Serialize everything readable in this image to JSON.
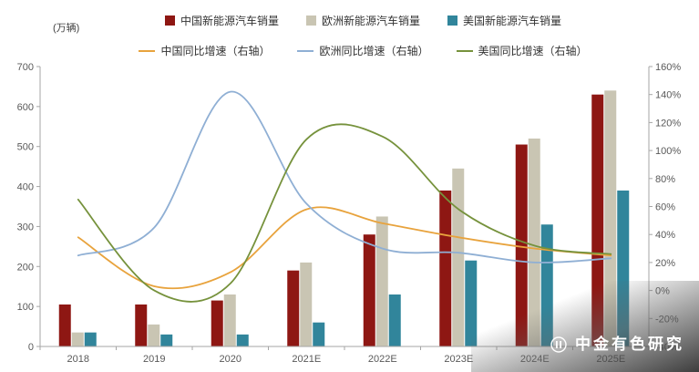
{
  "unit_label": "(万辆)",
  "watermark": {
    "text": "中金有色研究"
  },
  "legend": {
    "bars": [
      {
        "label": "中国新能源汽车销量",
        "color": "#8E1713"
      },
      {
        "label": "欧洲新能源汽车销量",
        "color": "#C9C5B3"
      },
      {
        "label": "美国新能源汽车销量",
        "color": "#31859B"
      }
    ],
    "lines": [
      {
        "label": "中国同比增速（右轴）",
        "color": "#E8A33D"
      },
      {
        "label": "欧洲同比增速（右轴）",
        "color": "#8FAFD4"
      },
      {
        "label": "美国同比增速（右轴）",
        "color": "#76923C"
      }
    ]
  },
  "chart_data": {
    "type": "bar+line combo",
    "title": "",
    "categories": [
      "2018",
      "2019",
      "2020",
      "2021E",
      "2022E",
      "2023E",
      "2024E",
      "2025E"
    ],
    "bar_series": [
      {
        "name": "中国新能源汽车销量",
        "color": "#8E1713",
        "values": [
          105,
          105,
          115,
          190,
          280,
          390,
          505,
          630
        ]
      },
      {
        "name": "欧洲新能源汽车销量",
        "color": "#C9C5B3",
        "values": [
          35,
          55,
          130,
          210,
          325,
          445,
          520,
          640
        ]
      },
      {
        "name": "美国新能源汽车销量",
        "color": "#31859B",
        "values": [
          35,
          30,
          30,
          60,
          130,
          215,
          305,
          390
        ]
      }
    ],
    "line_series": [
      {
        "name": "中国同比增速（右轴）",
        "color": "#E8A33D",
        "values": [
          38,
          3,
          13,
          58,
          48,
          38,
          30,
          25
        ]
      },
      {
        "name": "欧洲同比增速（右轴）",
        "color": "#8FAFD4",
        "values": [
          25,
          45,
          142,
          62,
          30,
          27,
          20,
          23
        ]
      },
      {
        "name": "美国同比增速（右轴）",
        "color": "#76923C",
        "values": [
          65,
          0,
          5,
          108,
          110,
          58,
          32,
          26
        ]
      }
    ],
    "left_axis": {
      "min": 0,
      "max": 700,
      "step": 100,
      "unit": "万辆"
    },
    "right_axis": {
      "min": -40,
      "max": 160,
      "step": 20,
      "unit": "%"
    },
    "grid": false,
    "legend_position": "top",
    "line_axis": "right"
  }
}
